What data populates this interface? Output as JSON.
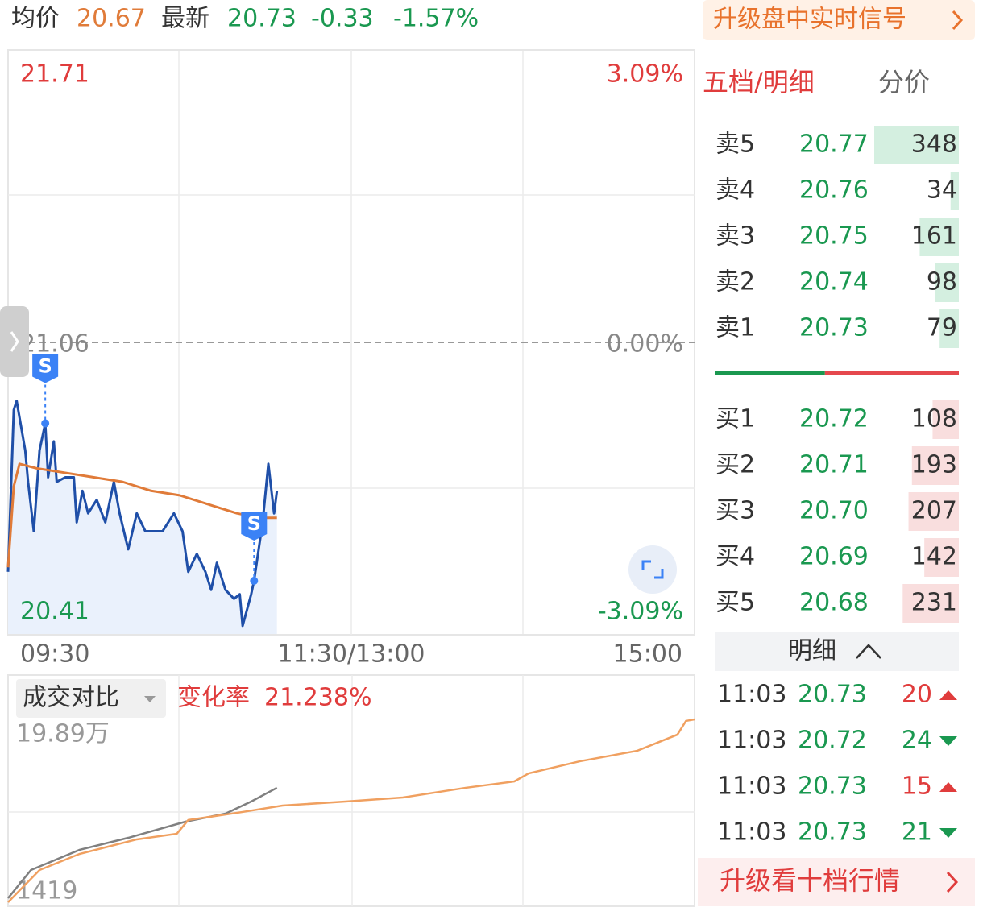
{
  "header": {
    "avg_label": "均价",
    "avg": "20.67",
    "latest_label": "最新",
    "latest": "20.73",
    "change": "-0.33",
    "change_pct": "-1.57%",
    "upgrade": "升级盘中实时信号"
  },
  "chart_data": [
    {
      "type": "line",
      "xlim": [
        0,
        240
      ],
      "xticks": [
        {
          "value": 0,
          "label": "09:30"
        },
        {
          "value": 120,
          "label": "11:30/13:00"
        },
        {
          "value": 240,
          "label": "15:00"
        }
      ],
      "ylim": [
        20.41,
        21.71
      ],
      "yticks": [
        20.41,
        21.06,
        21.71
      ],
      "y2lim": [
        -3.09,
        3.09
      ],
      "y2ticks": [
        {
          "value": -3.09,
          "label": "-3.09%"
        },
        {
          "value": 0,
          "label": "0.00%"
        },
        {
          "value": 3.09,
          "label": "3.09%"
        }
      ],
      "tick_colors": [
        "#1a9850",
        "#888888",
        "#e03c3c"
      ],
      "series": [
        {
          "color": "#1f4fa8",
          "area": "#eaf1fc",
          "x": [
            0,
            2,
            3,
            6,
            7,
            9,
            11,
            13,
            14,
            16,
            17,
            20,
            23,
            24,
            26,
            28,
            31,
            34,
            37,
            39,
            42,
            45,
            48,
            51,
            54,
            58,
            61,
            63,
            66,
            69,
            71,
            73,
            76,
            79,
            81,
            82,
            85,
            86,
            89,
            91,
            93,
            94
          ],
          "values": [
            20.55,
            20.91,
            20.93,
            20.82,
            20.75,
            20.64,
            20.82,
            20.88,
            20.76,
            20.84,
            20.75,
            20.76,
            20.76,
            20.66,
            20.73,
            20.68,
            20.71,
            20.66,
            20.75,
            20.68,
            20.6,
            20.68,
            20.64,
            20.64,
            20.64,
            20.68,
            20.64,
            20.55,
            20.59,
            20.55,
            20.51,
            20.57,
            20.51,
            20.49,
            20.5,
            20.43,
            20.5,
            20.53,
            20.66,
            20.79,
            20.68,
            20.73
          ]
        },
        {
          "color": "#e07b39",
          "x": [
            0,
            2,
            4,
            10,
            20,
            30,
            40,
            50,
            60,
            70,
            80,
            88,
            94
          ],
          "values": [
            20.56,
            20.74,
            20.79,
            20.78,
            20.77,
            20.76,
            20.75,
            20.73,
            20.72,
            20.7,
            20.68,
            20.67,
            20.67
          ]
        }
      ],
      "markers": [
        {
          "x": 13,
          "y": 20.88,
          "label": "S"
        },
        {
          "x": 86,
          "y": 20.53,
          "label": "S"
        }
      ],
      "marker_color": "#3b82f6"
    },
    {
      "type": "line",
      "title": "成交对比",
      "change_label": "变化率",
      "change": "21.238%",
      "xlim": [
        0,
        240
      ],
      "ylim": [
        1419,
        198900
      ],
      "yticks": [
        1419,
        {
          "value": 198900,
          "label": "19.89万"
        }
      ],
      "series": [
        {
          "color": "#808080",
          "x": [
            0,
            8,
            25,
            42,
            62,
            76,
            85,
            94
          ],
          "values": [
            5800,
            36200,
            58000,
            71000,
            88400,
            97100,
            110200,
            125000
          ]
        },
        {
          "color": "#f0a060",
          "x": [
            0,
            11,
            25,
            45,
            59,
            63,
            82,
            96,
            118,
            138,
            160,
            177,
            182,
            200,
            220,
            234,
            237,
            240
          ],
          "values": [
            1419,
            36200,
            53600,
            69300,
            75400,
            90200,
            98900,
            105800,
            110200,
            114500,
            125000,
            131900,
            140600,
            153700,
            165000,
            182400,
            197200,
            198900
          ]
        }
      ]
    }
  ],
  "order_book": {
    "tabs": [
      "五档/明细",
      "分价"
    ],
    "ask_color": "#d4efe0",
    "bid_color": "#f9dede",
    "ask_line": "#1a9850",
    "bid_line": "#e5484d",
    "asks": [
      {
        "label": "卖5",
        "price": "20.77",
        "volume": 348
      },
      {
        "label": "卖4",
        "price": "20.76",
        "volume": 34
      },
      {
        "label": "卖3",
        "price": "20.75",
        "volume": 161
      },
      {
        "label": "卖2",
        "price": "20.74",
        "volume": 98
      },
      {
        "label": "卖1",
        "price": "20.73",
        "volume": 79
      }
    ],
    "bids": [
      {
        "label": "买1",
        "price": "20.72",
        "volume": 108
      },
      {
        "label": "买2",
        "price": "20.71",
        "volume": 193
      },
      {
        "label": "买3",
        "price": "20.70",
        "volume": 207
      },
      {
        "label": "买4",
        "price": "20.69",
        "volume": 142
      },
      {
        "label": "买5",
        "price": "20.68",
        "volume": 231
      }
    ]
  },
  "trades": {
    "title": "明细",
    "rows": [
      {
        "time": "11:03",
        "price": "20.73",
        "volume": 20,
        "direction": "up"
      },
      {
        "time": "11:03",
        "price": "20.72",
        "volume": 24,
        "direction": "down"
      },
      {
        "time": "11:03",
        "price": "20.73",
        "volume": 15,
        "direction": "up"
      },
      {
        "time": "11:03",
        "price": "20.73",
        "volume": 21,
        "direction": "down"
      }
    ]
  },
  "footer": {
    "upgrade": "升级看十档行情"
  }
}
